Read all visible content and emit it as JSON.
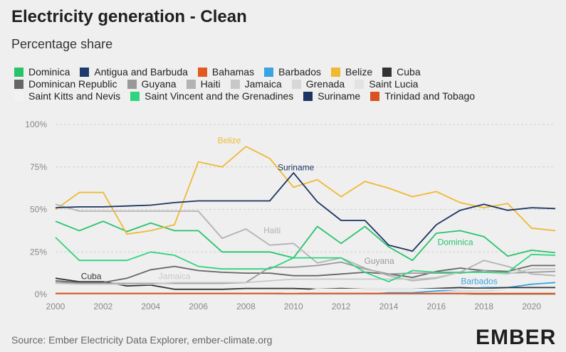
{
  "title": "Electricity generation - Clean",
  "subtitle": "Percentage share",
  "source": "Source: Ember Electricity Data Explorer, ember-climate.org",
  "logo": "EMBER",
  "chart_data": {
    "type": "line",
    "title": "Electricity generation - Clean",
    "subtitle": "Percentage share",
    "x": [
      2000,
      2001,
      2002,
      2003,
      2004,
      2005,
      2006,
      2007,
      2008,
      2009,
      2010,
      2011,
      2012,
      2013,
      2014,
      2015,
      2016,
      2017,
      2018,
      2019,
      2020,
      2021
    ],
    "xticks": [
      "2000",
      "2002",
      "2004",
      "2006",
      "2008",
      "2010",
      "2012",
      "2014",
      "2016",
      "2018",
      "2020"
    ],
    "yticks": [
      "0%",
      "25%",
      "50%",
      "75%",
      "100%"
    ],
    "ylim": [
      0,
      100
    ],
    "grid": true,
    "legend_position": "top",
    "series": [
      {
        "name": "Dominica",
        "color": "#27c46b",
        "values": [
          43,
          37.5,
          43,
          37,
          42,
          37.5,
          37.5,
          25,
          25,
          25,
          21.5,
          40,
          30,
          40,
          28,
          20,
          36,
          37.5,
          34,
          22.5,
          26,
          24.5
        ]
      },
      {
        "name": "Antigua and Barbuda",
        "color": "#1f3a6e",
        "values": [
          0.5,
          0.5,
          0.5,
          0.5,
          0.5,
          0.5,
          0.5,
          0.5,
          0.5,
          0.5,
          0.5,
          0.5,
          0.5,
          0.5,
          0.5,
          0.5,
          0.5,
          0.5,
          0.5,
          0.5,
          0.5,
          0.5
        ]
      },
      {
        "name": "Bahamas",
        "color": "#e15a1f",
        "values": [
          0.5,
          0.5,
          0.5,
          0.5,
          0.5,
          0.5,
          0.5,
          0.5,
          0.5,
          0.5,
          0.5,
          0.5,
          0.5,
          0.5,
          0.5,
          0.5,
          0.5,
          0.5,
          0.5,
          0.5,
          0.5,
          0.5
        ]
      },
      {
        "name": "Barbados",
        "color": "#3aa3e3",
        "values": [
          0,
          0,
          0,
          0,
          0,
          0,
          0,
          0,
          0,
          0,
          0,
          0,
          0,
          0,
          1,
          1,
          2,
          3,
          4,
          4,
          6,
          7
        ]
      },
      {
        "name": "Belize",
        "color": "#f0b932",
        "values": [
          50,
          60,
          60,
          35.5,
          37.5,
          41,
          78,
          75,
          87,
          80,
          63,
          67.5,
          57.5,
          66.5,
          62.5,
          57.5,
          60.5,
          54,
          51,
          53.5,
          39,
          37.5
        ]
      },
      {
        "name": "Cuba",
        "color": "#333333",
        "values": [
          9.5,
          7.5,
          7.5,
          5,
          5.5,
          3,
          3,
          3,
          3.5,
          3.5,
          3.5,
          3,
          3.5,
          3,
          3,
          3,
          3.5,
          4,
          3.5,
          4,
          4,
          4
        ]
      },
      {
        "name": "Dominican Republic",
        "color": "#666666",
        "values": [
          8,
          7,
          7,
          9.5,
          14.5,
          16.5,
          14,
          13,
          12.5,
          12.5,
          11,
          11,
          12,
          13,
          12,
          10,
          13.5,
          15.5,
          14,
          13.5,
          17,
          17
        ]
      },
      {
        "name": "Guyana",
        "color": "#999999",
        "values": [
          7,
          6.5,
          6.5,
          6.5,
          6.5,
          6.5,
          6.5,
          6.5,
          7,
          16,
          16,
          17,
          19,
          15,
          12,
          12.5,
          12.5,
          12.5,
          14,
          12.5,
          13,
          13.5
        ]
      },
      {
        "name": "Haiti",
        "color": "#b3b3b3",
        "values": [
          53,
          49,
          49,
          49,
          49,
          49,
          49,
          33,
          38.5,
          29,
          30,
          18.5,
          21.5,
          15.5,
          11,
          8,
          9.5,
          13,
          20,
          16.5,
          12,
          11
        ]
      },
      {
        "name": "Jamaica",
        "color": "#c8c8c8",
        "values": [
          6.5,
          6,
          6,
          6,
          6,
          7,
          7,
          7,
          7,
          8,
          9,
          9,
          9,
          9,
          9,
          9,
          10,
          13,
          13,
          12,
          15,
          15
        ]
      },
      {
        "name": "Grenada",
        "color": "#d7d7d7",
        "values": [
          0,
          0,
          0,
          0,
          0,
          0,
          0,
          0,
          0,
          0,
          0,
          0,
          0,
          0,
          0,
          0,
          1,
          2,
          2,
          3,
          3,
          3
        ]
      },
      {
        "name": "Saint Lucia",
        "color": "#e3e3e3",
        "values": [
          0,
          0,
          0,
          0,
          0,
          0,
          0,
          0,
          0,
          0,
          0,
          0,
          0,
          0,
          0,
          0,
          0,
          0,
          1,
          1,
          1,
          1
        ]
      },
      {
        "name": "Saint Kitts and Nevis",
        "color": "#f2f2f2",
        "values": [
          0,
          0,
          0,
          0,
          0,
          0,
          0,
          0,
          0,
          0,
          1,
          3,
          3,
          3,
          3,
          3,
          3,
          3,
          3,
          3,
          3,
          3
        ]
      },
      {
        "name": "Saint Vincent and the Grenadines",
        "color": "#2ed47e",
        "values": [
          33.5,
          20,
          20,
          20,
          25,
          23,
          16.5,
          15,
          15,
          15,
          21.5,
          21.5,
          21.5,
          13,
          7.5,
          14,
          13,
          13,
          13,
          13,
          23.5,
          23
        ]
      },
      {
        "name": "Suriname",
        "color": "#1c3461",
        "values": [
          51,
          51.5,
          51.5,
          52,
          52.5,
          54,
          55,
          55,
          55,
          55,
          71.5,
          54.5,
          43.5,
          43.5,
          29,
          25.5,
          41,
          49.5,
          53,
          49.5,
          51,
          50.5
        ]
      },
      {
        "name": "Trinidad and Tobago",
        "color": "#d9531e",
        "values": [
          0.5,
          0.5,
          0.5,
          0.5,
          0.5,
          0.5,
          0.5,
          0.5,
          0.5,
          0.5,
          0.5,
          0.5,
          0.5,
          0.5,
          0.5,
          0.5,
          0.5,
          0.5,
          0.5,
          0.5,
          0.5,
          0.5
        ]
      }
    ],
    "annotations": [
      {
        "text": "Belize",
        "x": 2007.3,
        "y": 89,
        "color": "#f0b932"
      },
      {
        "text": "Suriname",
        "x": 2010.1,
        "y": 73,
        "color": "#1c3461"
      },
      {
        "text": "Haiti",
        "x": 2009.1,
        "y": 36,
        "color": "#b3b3b3"
      },
      {
        "text": "Dominica",
        "x": 2016.8,
        "y": 29,
        "color": "#27c46b"
      },
      {
        "text": "Guyana",
        "x": 2013.6,
        "y": 18,
        "color": "#999999"
      },
      {
        "text": "Cuba",
        "x": 2001.5,
        "y": 9,
        "color": "#333333"
      },
      {
        "text": "Jamaica",
        "x": 2005.0,
        "y": 9,
        "color": "#c8c8c8"
      },
      {
        "text": "Barbados",
        "x": 2017.8,
        "y": 6,
        "color": "#3aa3e3"
      }
    ]
  }
}
